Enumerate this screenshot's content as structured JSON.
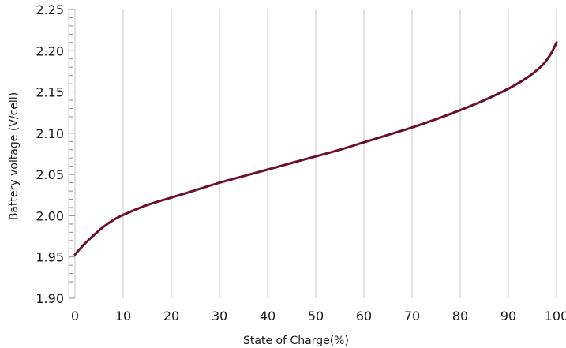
{
  "chart_data": {
    "type": "line",
    "title": "",
    "xlabel": "State of Charge(%)",
    "ylabel": "Battery voltage (V/cell)",
    "xlim": [
      0,
      100
    ],
    "ylim": [
      1.9,
      2.25
    ],
    "x_ticks": [
      0,
      10,
      20,
      30,
      40,
      50,
      60,
      70,
      80,
      90,
      100
    ],
    "x_tick_labels": [
      "0",
      "10",
      "20",
      "30",
      "40",
      "50",
      "60",
      "70",
      "80",
      "90",
      "100"
    ],
    "y_ticks": [
      1.9,
      1.95,
      2.0,
      2.05,
      2.1,
      2.15,
      2.2,
      2.25
    ],
    "y_tick_labels": [
      "1.90",
      "1.95",
      "2.00",
      "2.05",
      "2.10",
      "2.15",
      "2.20",
      "2.25"
    ],
    "y_minor_step": 0.01,
    "grid": "vertical",
    "legend": "none",
    "series_color": "#6b0f2e",
    "grid_color": "#d9d9d9",
    "series": [
      {
        "x": [
          0,
          2,
          4,
          6,
          8,
          10,
          15,
          20,
          25,
          30,
          35,
          40,
          45,
          50,
          55,
          60,
          65,
          70,
          75,
          80,
          85,
          90,
          93,
          95,
          97,
          98,
          99,
          100
        ],
        "y": [
          1.953,
          1.966,
          1.977,
          1.987,
          1.995,
          2.001,
          2.013,
          2.022,
          2.031,
          2.04,
          2.048,
          2.056,
          2.064,
          2.072,
          2.08,
          2.089,
          2.098,
          2.107,
          2.117,
          2.128,
          2.14,
          2.154,
          2.164,
          2.172,
          2.182,
          2.189,
          2.198,
          2.21
        ]
      }
    ]
  }
}
